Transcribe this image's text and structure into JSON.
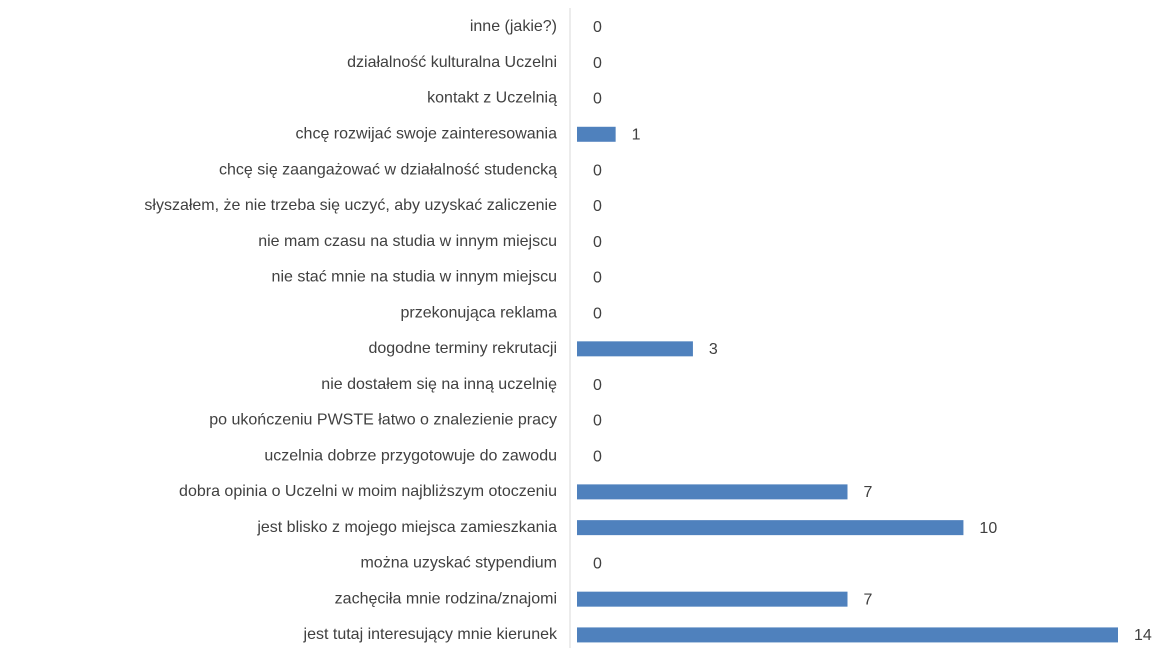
{
  "chart_data": {
    "type": "bar",
    "orientation": "horizontal",
    "color": "#4f81bd",
    "categories": [
      "inne (jakie?)",
      "działalność kulturalna Uczelni",
      "kontakt z Uczelnią",
      "chcę rozwijać swoje zainteresowania",
      "chcę się zaangażować w działalność studencką",
      "słyszałem, że nie trzeba się uczyć, aby uzyskać zaliczenie",
      "nie mam czasu na studia w innym miejscu",
      "nie stać mnie na studia w innym miejscu",
      "przekonująca reklama",
      "dogodne terminy rekrutacji",
      "nie dostałem się na inną uczelnię",
      "po ukończeniu PWSTE łatwo o znalezienie pracy",
      "uczelnia dobrze przygotowuje do zawodu",
      "dobra opinia o Uczelni w moim najbliższym otoczeniu",
      "jest blisko z mojego miejsca zamieszkania",
      "można uzyskać stypendium",
      "zachęciła mnie rodzina/znajomi",
      "jest tutaj interesujący mnie kierunek"
    ],
    "values": [
      0,
      0,
      0,
      1,
      0,
      0,
      0,
      0,
      0,
      3,
      0,
      0,
      0,
      7,
      10,
      0,
      7,
      14
    ]
  }
}
